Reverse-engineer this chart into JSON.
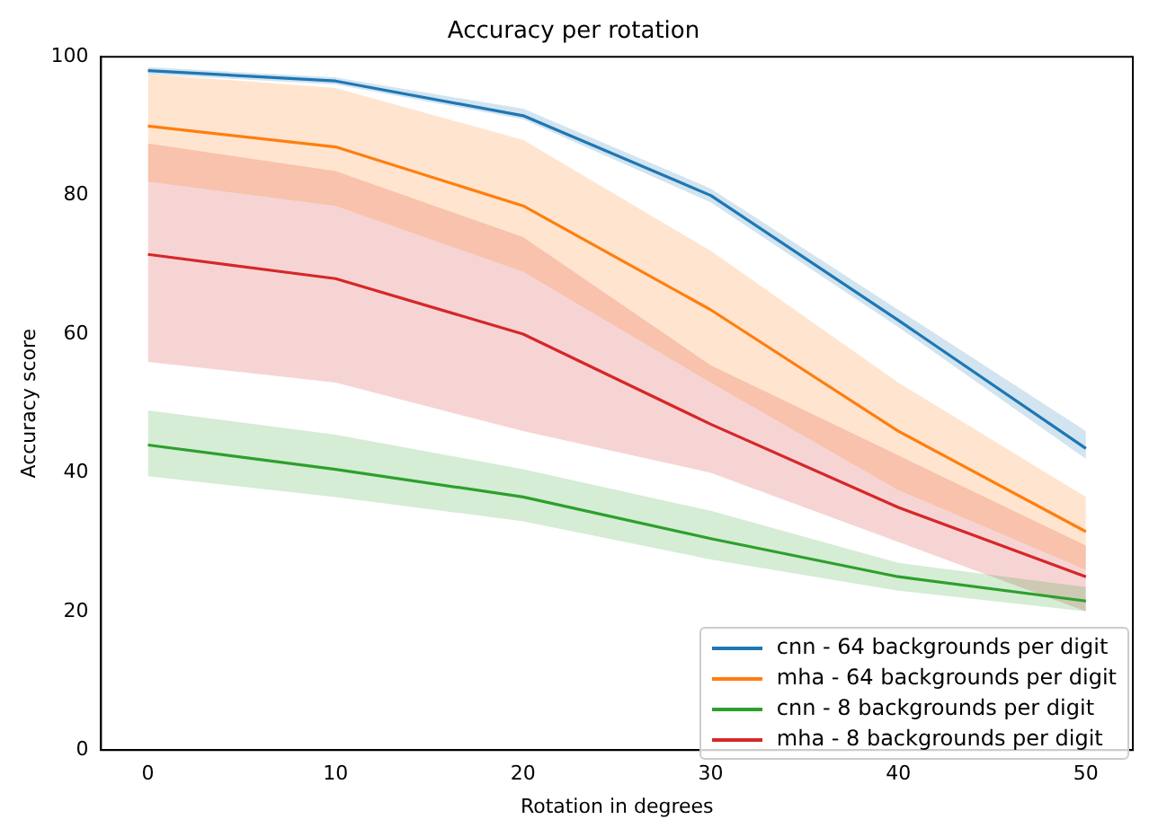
{
  "chart_data": {
    "type": "line",
    "title": "Accuracy per rotation",
    "xlabel": "Rotation in degrees",
    "ylabel": "Accuracy score",
    "x": [
      0,
      10,
      20,
      30,
      40,
      50
    ],
    "series": [
      {
        "name": "cnn - 64 backgrounds per digit",
        "color": "#1f77b4",
        "values": [
          98,
          96.5,
          91.5,
          80,
          62,
          43.5
        ],
        "lower": [
          97.5,
          96,
          91,
          79,
          61,
          42
        ],
        "upper": [
          98.5,
          97,
          92.5,
          81,
          63.5,
          46
        ]
      },
      {
        "name": "mha - 64 backgrounds per digit",
        "color": "#ff7f0e",
        "values": [
          90,
          87,
          78.5,
          63.5,
          46,
          31.5
        ],
        "lower": [
          82,
          78.5,
          69,
          53,
          37.5,
          26
        ],
        "upper": [
          97.5,
          95.5,
          88,
          72,
          53,
          36.5
        ]
      },
      {
        "name": "cnn - 8 backgrounds per digit",
        "color": "#2ca02c",
        "values": [
          44,
          40.5,
          36.5,
          30.5,
          25,
          21.5
        ],
        "lower": [
          39.5,
          36.5,
          33,
          27.5,
          23,
          20
        ],
        "upper": [
          49,
          45.5,
          40.5,
          34.5,
          27,
          23.5
        ]
      },
      {
        "name": "mha - 8 backgrounds per digit",
        "color": "#d62728",
        "values": [
          71.5,
          68,
          60,
          47,
          35,
          25
        ],
        "lower": [
          56,
          53,
          46,
          40,
          30,
          20
        ],
        "upper": [
          87.5,
          83.5,
          74,
          55.5,
          42.5,
          29.5
        ]
      }
    ],
    "xlim": [
      -2.5,
      52.5
    ],
    "xticks": [
      0,
      10,
      20,
      30,
      40,
      50
    ],
    "ylim": [
      0,
      100
    ],
    "yticks": [
      0,
      20,
      40,
      60,
      80,
      100
    ],
    "legend": "bottom right",
    "grid": false,
    "marker": "none",
    "line_style": "solid"
  }
}
